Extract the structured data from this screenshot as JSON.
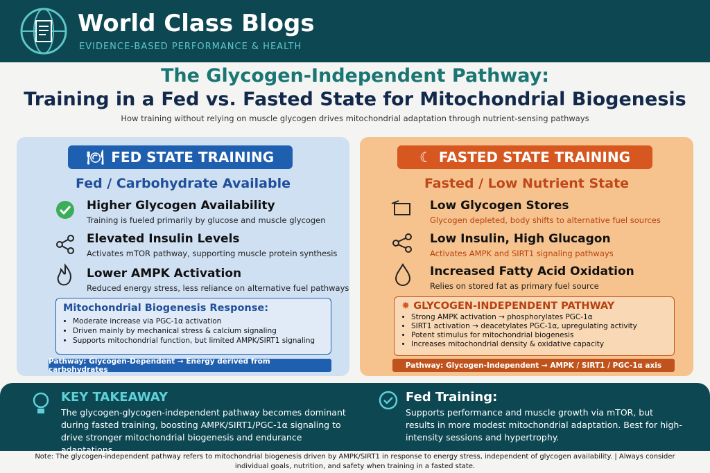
{
  "header": {
    "title": "World Class Blogs",
    "subtitle": "EVIDENCE-BASED PERFORMANCE & HEALTH"
  },
  "main": {
    "title_line1": "The Glycogen-Independent Pathway:",
    "title_line2": "Training in a Fed vs. Fasted State for Mitochondrial Biogenesis",
    "description": "How training without relying on muscle glycogen drives mitochondrial adaptation through nutrient-sensing pathways"
  },
  "fed": {
    "heading": "FED STATE TRAINING",
    "subheading": "Fed / Carbohydrate Available",
    "items": [
      {
        "title": "Higher Glycogen Availability",
        "text": "Training is fueled primarily by glucose and muscle glycogen"
      },
      {
        "title": "Elevated Insulin Levels",
        "text": "Activates mTOR pathway, supporting muscle protein synthesis"
      },
      {
        "title": "Lower AMPK Activation",
        "text": "Reduced energy stress, less reliance on alternative fuel pathways"
      }
    ],
    "box_title": "Mitochondrial Biogenesis Response:",
    "bullets": [
      "Moderate increase via PGC-1α activation",
      "Driven mainly by mechanical stress & calcium signaling",
      "Supports mitochondrial function, but limited AMPK/SIRT1 signaling"
    ],
    "pathway": "Pathway: Glycogen-Dependent → Energy derived from carbohydrates"
  },
  "fasted": {
    "heading": "FASTED STATE TRAINING",
    "subheading": "Fasted / Low Nutrient State",
    "items": [
      {
        "title": "Low Glycogen Stores",
        "text": "Glycogen depleted, body shifts to alternative fuel sources"
      },
      {
        "title": "Low Insulin, High Glucagon",
        "text": "Activates AMPK and SIRT1 signaling pathways"
      },
      {
        "title": "Increased Fatty Acid Oxidation",
        "text": "Relies on stored fat as primary fuel source"
      }
    ],
    "box_title": "GLYCOGEN-INDEPENDENT PATHWAY",
    "bullets": [
      "Strong AMPK activation → phosphorylates PGC-1α",
      "SIRT1 activation → deacetylates PGC-1α, upregulating activity",
      "Potent stimulus for mitochondrial biogenesis",
      "Increases mitochondrial density & oxidative capacity"
    ],
    "pathway": "Pathway: Glycogen-Independent → AMPK / SIRT1 / PGC-1α axis"
  },
  "takeaway": {
    "title": "KEY TAKEAWAY",
    "text": "The glycogen-glycogen-independent pathway becomes dominant during fasted training, boosting AMPK/SIRT1/PGC-1α signaling to drive stronger mitochondrial biogenesis and endurance adaptations."
  },
  "fed_training": {
    "title": "Fed Training:",
    "text": "Supports performance and muscle growth via mTOR, but results in more modest mitochondrial adaptation. Best for high-intensity sessions and hypertrophy."
  },
  "note": "Note: The glycogen-independent pathway refers to mitochondrial biogenesis driven by AMPK/SIRT1 in response to energy stress, independent of glycogen availability. | Always consider individual goals, nutrition, and safety when training in a fasted state."
}
